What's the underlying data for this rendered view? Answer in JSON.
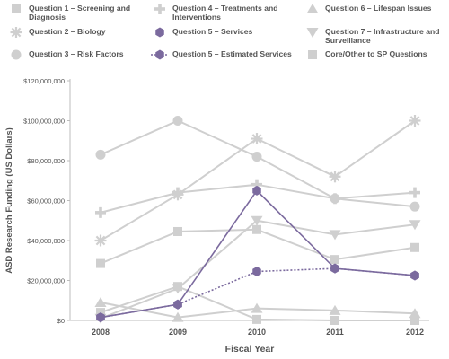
{
  "chart_data": {
    "type": "line",
    "title": "",
    "xlabel": "Fiscal Year",
    "ylabel": "ASD Research Funding (US Dollars)",
    "x": [
      "2008",
      "2009",
      "2010",
      "2011",
      "2012"
    ],
    "ylim": [
      0,
      120000000
    ],
    "yticks": [
      0,
      20000000,
      40000000,
      60000000,
      80000000,
      100000000,
      120000000
    ],
    "ytick_labels": [
      "$0",
      "$20,000,000",
      "$40,000,000",
      "$60,000,000",
      "$80,000,000",
      "$100,000,000",
      "$120,000,000"
    ],
    "grid": false,
    "legend_position": "top",
    "series": [
      {
        "name": "Question 1 - Screening and Diagnosis",
        "marker": "square",
        "color": "#cfcfcf",
        "dashed": false,
        "values": [
          4000000,
          17000000,
          500000,
          0,
          0
        ]
      },
      {
        "name": "Question 2 - Biology",
        "marker": "asterisk",
        "color": "#cfcfcf",
        "dashed": false,
        "values": [
          40000000,
          63000000,
          91000000,
          72000000,
          100000000
        ]
      },
      {
        "name": "Question 3 - Risk Factors",
        "marker": "circle",
        "color": "#cfcfcf",
        "dashed": false,
        "values": [
          83000000,
          100000000,
          82000000,
          61000000,
          57000000
        ]
      },
      {
        "name": "Question 4 - Treatments and Interventions",
        "marker": "plus",
        "color": "#cfcfcf",
        "dashed": false,
        "values": [
          54000000,
          64000000,
          68000000,
          61000000,
          64000000
        ]
      },
      {
        "name": "Question 5 - Services",
        "marker": "hexagon",
        "color": "#7b6a9e",
        "dashed": false,
        "values": [
          1500000,
          8000000,
          65000000,
          26000000,
          22500000
        ]
      },
      {
        "name": "Question 5 - Estimated Services",
        "marker": "hexagon",
        "color": "#7b6a9e",
        "dashed": true,
        "values": [
          1500000,
          8000000,
          24500000,
          26000000,
          22500000
        ]
      },
      {
        "name": "Question 6 - Lifespan Issues",
        "marker": "triangle-up",
        "color": "#cfcfcf",
        "dashed": false,
        "values": [
          9000000,
          1500000,
          6000000,
          5000000,
          3500000
        ]
      },
      {
        "name": "Question 7 - Infrastructure and Surveillance",
        "marker": "triangle-down",
        "color": "#cfcfcf",
        "dashed": false,
        "values": [
          1000000,
          16000000,
          50000000,
          43000000,
          48000000
        ]
      },
      {
        "name": "Core/Other to SP Questions",
        "marker": "square",
        "color": "#cfcfcf",
        "dashed": false,
        "values": [
          28500000,
          44500000,
          45500000,
          30500000,
          36500000
        ]
      }
    ]
  },
  "legend": [
    {
      "label": "Question 1 – Screening and Diagnosis",
      "marker": "square",
      "color": "#cfcfcf",
      "dashed": false
    },
    {
      "label": "Question 4 – Treatments and Interventions",
      "marker": "plus",
      "color": "#cfcfcf",
      "dashed": false
    },
    {
      "label": "Question 6 – Lifespan Issues",
      "marker": "triangle-up",
      "color": "#cfcfcf",
      "dashed": false
    },
    {
      "label": "Question 2 – Biology",
      "marker": "asterisk",
      "color": "#cfcfcf",
      "dashed": false
    },
    {
      "label": "Question 5 – Services",
      "marker": "hexagon",
      "color": "#7b6a9e",
      "dashed": false
    },
    {
      "label": "Question 7 – Infrastructure and Surveillance",
      "marker": "triangle-down",
      "color": "#cfcfcf",
      "dashed": false
    },
    {
      "label": "Question 3 – Risk Factors",
      "marker": "circle",
      "color": "#cfcfcf",
      "dashed": false
    },
    {
      "label": "Question 5 – Estimated Services",
      "marker": "hexagon",
      "color": "#7b6a9e",
      "dashed": true
    },
    {
      "label": "Core/Other to SP Questions",
      "marker": "square",
      "color": "#cfcfcf",
      "dashed": false
    }
  ]
}
